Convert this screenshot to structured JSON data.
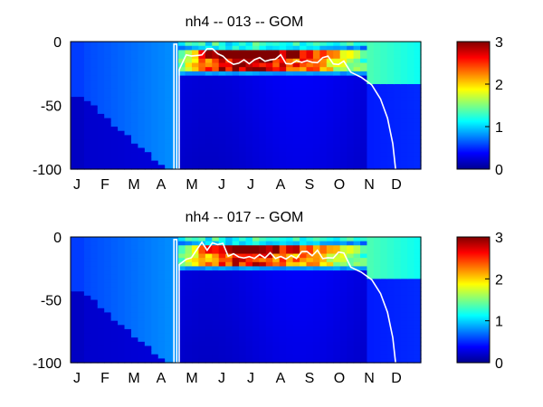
{
  "chart_data": [
    {
      "type": "heatmap",
      "title": "nh4 -- 013 -- GOM",
      "x_tick_labels": [
        "J",
        "F",
        "M",
        "A",
        "M",
        "J",
        "J",
        "A",
        "S",
        "O",
        "N",
        "D"
      ],
      "y_ticks": [
        0,
        -50,
        -100
      ],
      "ylim": [
        -100,
        0
      ],
      "colorbar": {
        "ticks": [
          0,
          1,
          2,
          3
        ],
        "range": [
          0,
          3
        ],
        "colormap": "jet"
      },
      "surface_max": 3.0,
      "grid": false
    },
    {
      "type": "heatmap",
      "title": "nh4 -- 017 -- GOM",
      "x_tick_labels": [
        "J",
        "F",
        "M",
        "A",
        "M",
        "J",
        "J",
        "A",
        "S",
        "O",
        "N",
        "D"
      ],
      "y_ticks": [
        0,
        -50,
        -100
      ],
      "ylim": [
        -100,
        0
      ],
      "colorbar": {
        "ticks": [
          0,
          1,
          2,
          3
        ],
        "range": [
          0,
          3
        ],
        "colormap": "jet"
      },
      "surface_max": 2.6,
      "grid": false
    }
  ]
}
